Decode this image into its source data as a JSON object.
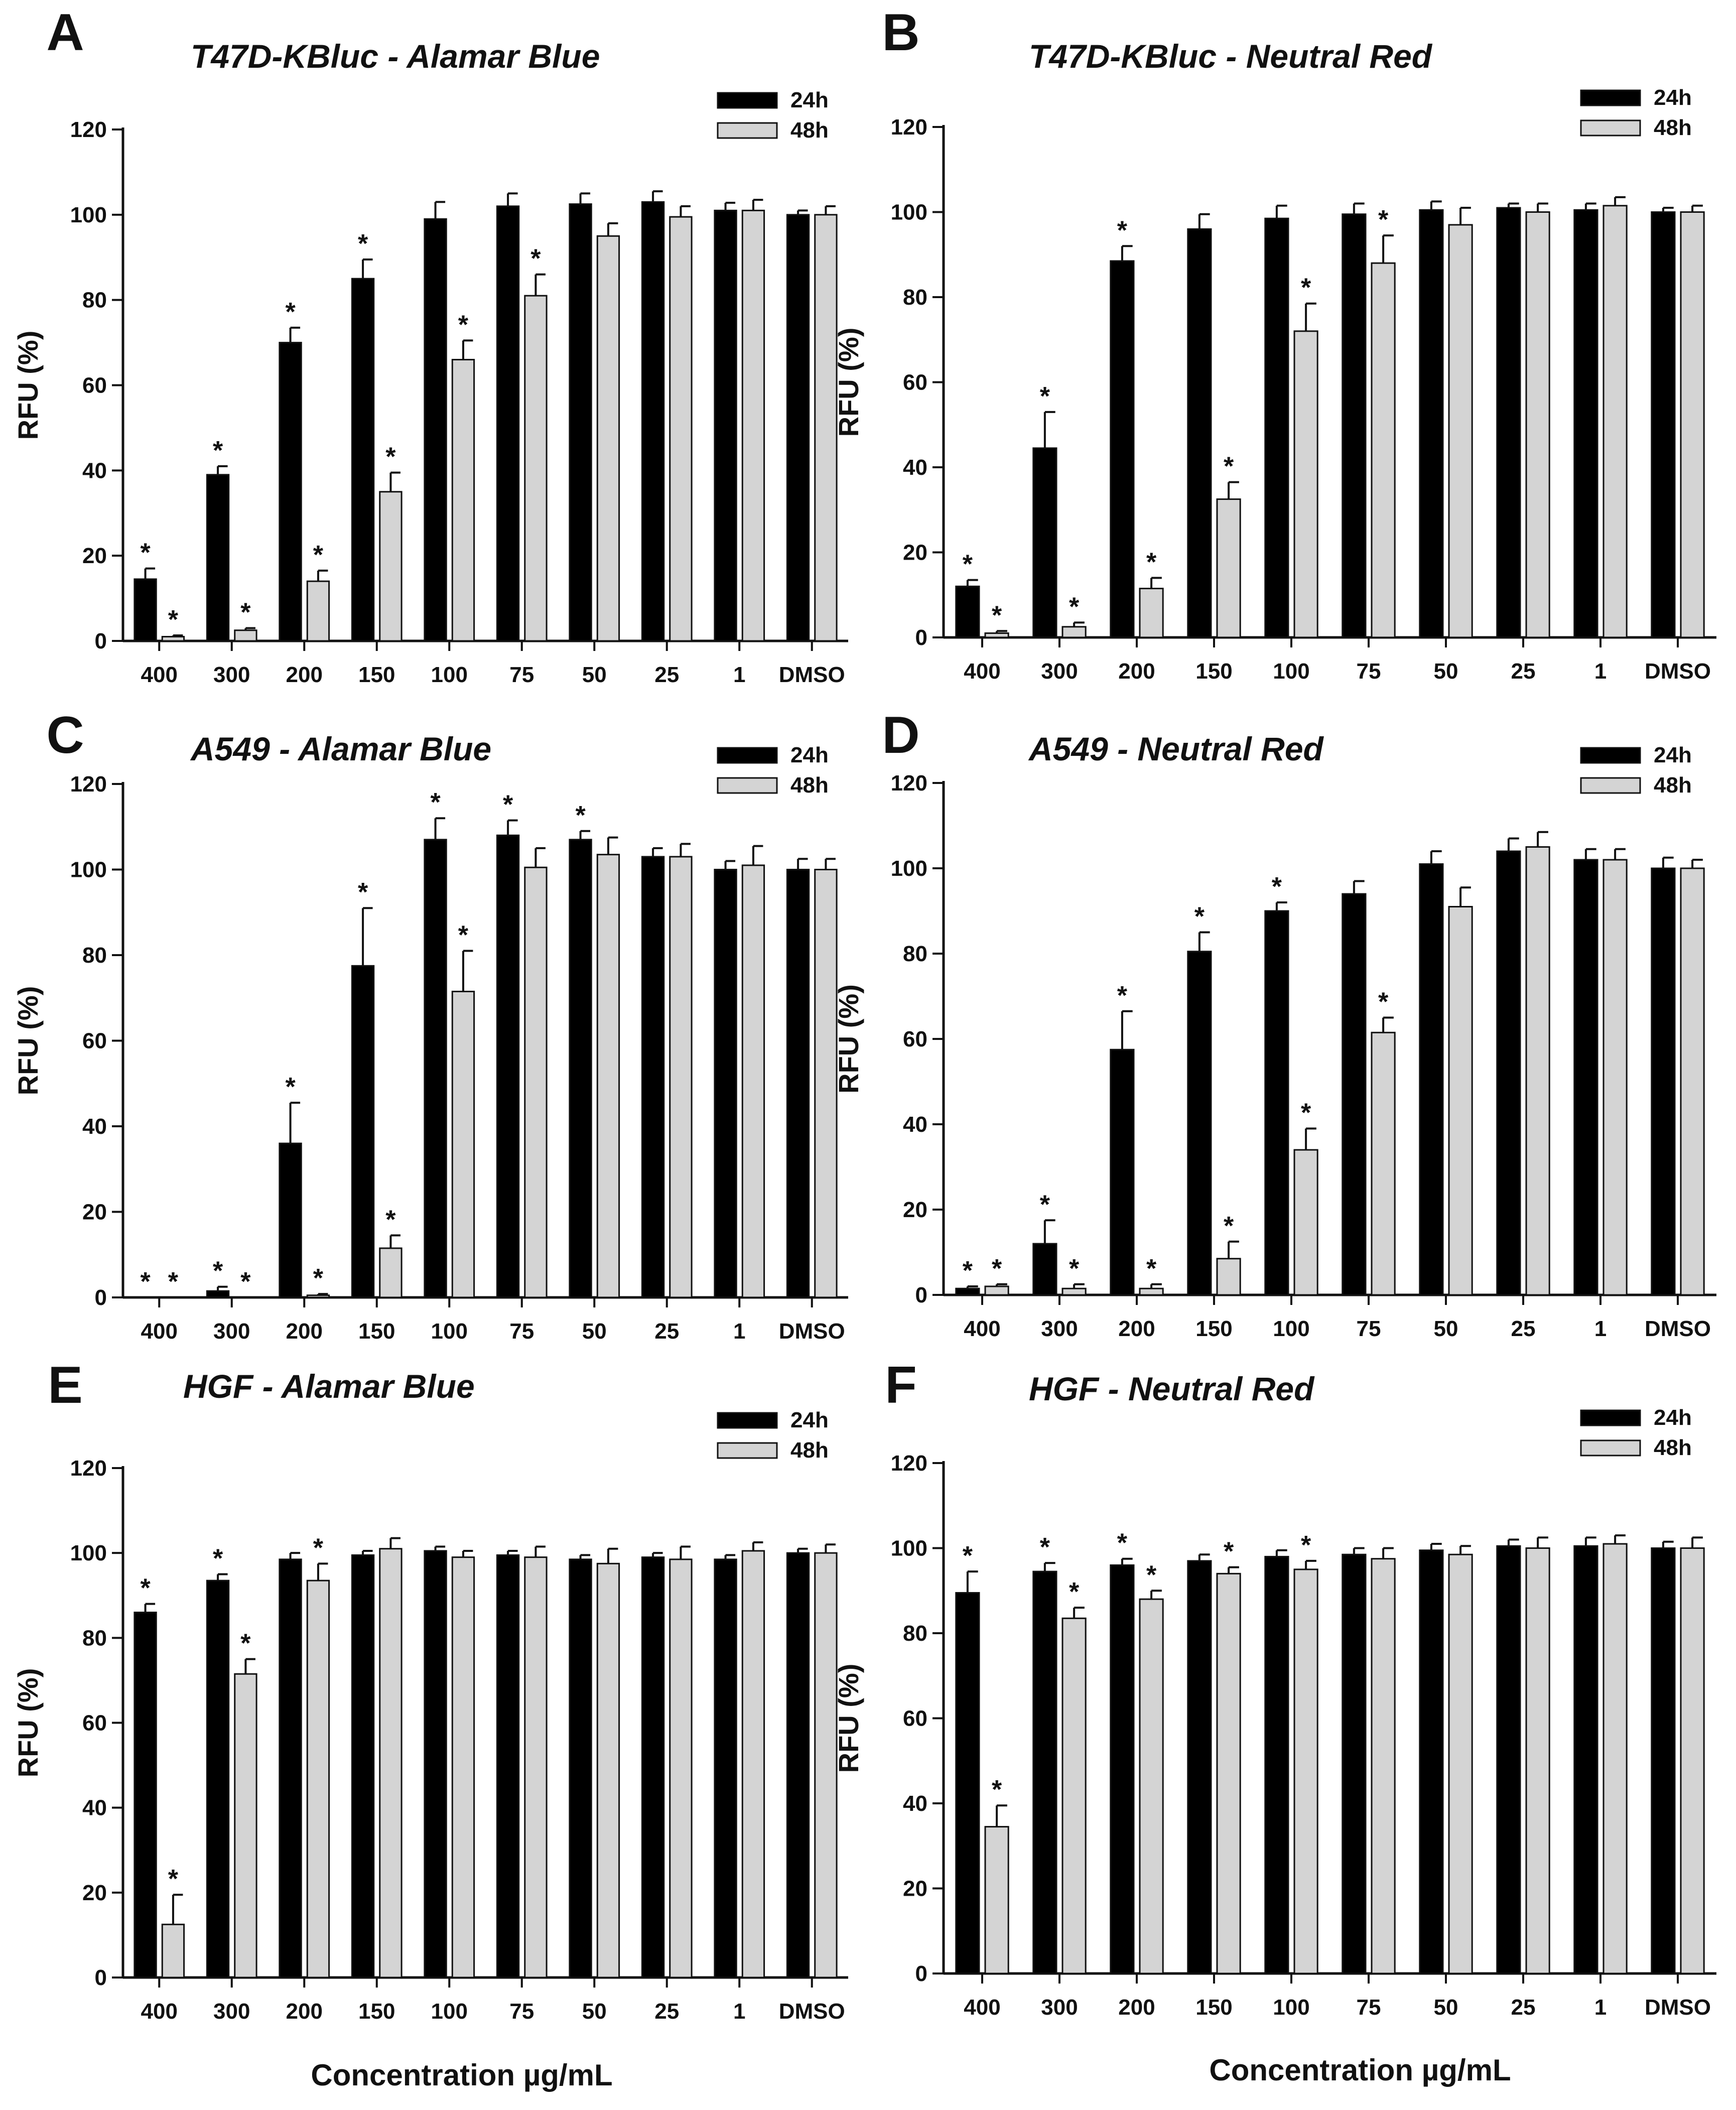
{
  "figure": {
    "xtitle_left": "Concentration µg/mL",
    "xtitle_right": "Concentration µg/mL"
  },
  "colors": {
    "h24": "#000000",
    "h48": "#d4d4d4"
  },
  "chart_data": [
    {
      "panel": "A",
      "title": "T47D-KBluc - Alamar Blue",
      "type": "bar",
      "ylabel": "RFU (%)",
      "ylim": [
        0,
        120
      ],
      "yticks": [
        0,
        20,
        40,
        60,
        80,
        100,
        120
      ],
      "categories": [
        "400",
        "300",
        "200",
        "150",
        "100",
        "75",
        "50",
        "25",
        "1",
        "DMSO"
      ],
      "legend": [
        "24h",
        "48h"
      ],
      "series": [
        {
          "name": "24h",
          "values": [
            14.5,
            39,
            70,
            85,
            99,
            102,
            102.5,
            103,
            101,
            100
          ],
          "errors": [
            2.5,
            2,
            3.5,
            4.5,
            4,
            3,
            2.5,
            2.5,
            1.8,
            1
          ],
          "significant": [
            true,
            true,
            true,
            true,
            false,
            false,
            false,
            false,
            false,
            false
          ]
        },
        {
          "name": "48h",
          "values": [
            1,
            2.5,
            14,
            35,
            66,
            81,
            95,
            99.5,
            101,
            100
          ],
          "errors": [
            0.3,
            0.5,
            2.5,
            4.5,
            4.5,
            5,
            3,
            2.5,
            2.5,
            2
          ],
          "significant": [
            true,
            true,
            true,
            true,
            true,
            true,
            false,
            false,
            false,
            false
          ]
        }
      ]
    },
    {
      "panel": "B",
      "title": "T47D-KBluc - Neutral Red",
      "type": "bar",
      "ylabel": "RFU (%)",
      "ylim": [
        0,
        120
      ],
      "yticks": [
        0,
        20,
        40,
        60,
        80,
        100,
        120
      ],
      "categories": [
        "400",
        "300",
        "200",
        "150",
        "100",
        "75",
        "50",
        "25",
        "1",
        "DMSO"
      ],
      "legend": [
        "24h",
        "48h"
      ],
      "series": [
        {
          "name": "24h",
          "values": [
            12,
            44.5,
            88.5,
            96,
            98.5,
            99.5,
            100.5,
            101,
            100.5,
            100
          ],
          "errors": [
            1.5,
            8.5,
            3.5,
            3.5,
            3,
            2.5,
            2,
            1,
            1.5,
            1
          ],
          "significant": [
            true,
            true,
            true,
            false,
            false,
            false,
            false,
            false,
            false,
            false
          ]
        },
        {
          "name": "48h",
          "values": [
            1,
            2.5,
            11.5,
            32.5,
            72,
            88,
            97,
            100,
            101.5,
            100
          ],
          "errors": [
            0.5,
            1,
            2.5,
            4,
            6.5,
            6.5,
            4,
            2,
            2,
            1.5
          ],
          "significant": [
            true,
            true,
            true,
            true,
            true,
            true,
            false,
            false,
            false,
            false
          ]
        }
      ]
    },
    {
      "panel": "C",
      "title": "A549 - Alamar Blue",
      "type": "bar",
      "ylabel": "RFU (%)",
      "ylim": [
        0,
        120
      ],
      "yticks": [
        0,
        20,
        40,
        60,
        80,
        100,
        120
      ],
      "categories": [
        "400",
        "300",
        "200",
        "150",
        "100",
        "75",
        "50",
        "25",
        "1",
        "DMSO"
      ],
      "legend": [
        "24h",
        "48h"
      ],
      "series": [
        {
          "name": "24h",
          "values": [
            0,
            1.5,
            36,
            77.5,
            107,
            108,
            107,
            103,
            100,
            100
          ],
          "errors": [
            0,
            1,
            9.5,
            13.5,
            5,
            3.5,
            2,
            2,
            2,
            2.5
          ],
          "significant": [
            true,
            true,
            true,
            true,
            true,
            true,
            true,
            false,
            false,
            false
          ]
        },
        {
          "name": "48h",
          "values": [
            0,
            0,
            0.5,
            11.5,
            71.5,
            100.5,
            103.5,
            103,
            101,
            100
          ],
          "errors": [
            0,
            0,
            0.3,
            3,
            9.5,
            4.5,
            4,
            3,
            4.5,
            2.5
          ],
          "significant": [
            true,
            true,
            true,
            true,
            true,
            false,
            false,
            false,
            false,
            false
          ]
        }
      ]
    },
    {
      "panel": "D",
      "title": "A549 - Neutral Red",
      "type": "bar",
      "ylabel": "RFU (%)",
      "ylim": [
        0,
        120
      ],
      "yticks": [
        0,
        20,
        40,
        60,
        80,
        100,
        120
      ],
      "categories": [
        "400",
        "300",
        "200",
        "150",
        "100",
        "75",
        "50",
        "25",
        "1",
        "DMSO"
      ],
      "legend": [
        "24h",
        "48h"
      ],
      "series": [
        {
          "name": "24h",
          "values": [
            1.5,
            12,
            57.5,
            80.5,
            90,
            94,
            101,
            104,
            102,
            100
          ],
          "errors": [
            0.5,
            5.5,
            9,
            4.5,
            2,
            3,
            3,
            3,
            2.5,
            2.5
          ],
          "significant": [
            true,
            true,
            true,
            true,
            true,
            false,
            false,
            false,
            false,
            false
          ]
        },
        {
          "name": "48h",
          "values": [
            2,
            1.5,
            1.5,
            8.5,
            34,
            61.5,
            91,
            105,
            102,
            100
          ],
          "errors": [
            0.5,
            1,
            1,
            4,
            5,
            3.5,
            4.5,
            3.5,
            2.5,
            2
          ],
          "significant": [
            true,
            true,
            true,
            true,
            true,
            true,
            false,
            false,
            false,
            false
          ]
        }
      ]
    },
    {
      "panel": "E",
      "title": "HGF   - Alamar Blue",
      "type": "bar",
      "ylabel": "RFU (%)",
      "ylim": [
        0,
        120
      ],
      "yticks": [
        0,
        20,
        40,
        60,
        80,
        100,
        120
      ],
      "categories": [
        "400",
        "300",
        "200",
        "150",
        "100",
        "75",
        "50",
        "25",
        "1",
        "DMSO"
      ],
      "legend": [
        "24h",
        "48h"
      ],
      "series": [
        {
          "name": "24h",
          "values": [
            86,
            93.5,
            98.5,
            99.5,
            100.5,
            99.5,
            98.5,
            99,
            98.5,
            100
          ],
          "errors": [
            2,
            1.5,
            1.5,
            1,
            1,
            1,
            1,
            1,
            1,
            1
          ],
          "significant": [
            true,
            true,
            false,
            false,
            false,
            false,
            false,
            false,
            false,
            false
          ]
        },
        {
          "name": "48h",
          "values": [
            12.5,
            71.5,
            93.5,
            101,
            99,
            99,
            97.5,
            98.5,
            100.5,
            100
          ],
          "errors": [
            7,
            3.5,
            4,
            2.5,
            1.5,
            2.5,
            3.5,
            3,
            2,
            2
          ],
          "significant": [
            true,
            true,
            true,
            false,
            false,
            false,
            false,
            false,
            false,
            false
          ]
        }
      ]
    },
    {
      "panel": "F",
      "title": "HGF    - Neutral Red",
      "type": "bar",
      "ylabel": "RFU (%)",
      "ylim": [
        0,
        120
      ],
      "yticks": [
        0,
        20,
        40,
        60,
        80,
        100,
        120
      ],
      "categories": [
        "400",
        "300",
        "200",
        "150",
        "100",
        "75",
        "50",
        "25",
        "1",
        "DMSO"
      ],
      "legend": [
        "24h",
        "48h"
      ],
      "series": [
        {
          "name": "24h",
          "values": [
            89.5,
            94.5,
            96,
            97,
            98,
            98.5,
            99.5,
            100.5,
            100.5,
            100
          ],
          "errors": [
            5,
            2,
            1.5,
            1.5,
            1.5,
            1.5,
            1.5,
            1.5,
            2,
            1.5
          ],
          "significant": [
            true,
            true,
            true,
            false,
            false,
            false,
            false,
            false,
            false,
            false
          ]
        },
        {
          "name": "48h",
          "values": [
            34.5,
            83.5,
            88,
            94,
            95,
            97.5,
            98.5,
            100,
            101,
            100
          ],
          "errors": [
            5,
            2.5,
            2,
            1.5,
            2,
            2.5,
            2,
            2.5,
            2,
            2.5
          ],
          "significant": [
            true,
            true,
            true,
            true,
            true,
            false,
            false,
            false,
            false,
            false
          ]
        }
      ]
    }
  ]
}
